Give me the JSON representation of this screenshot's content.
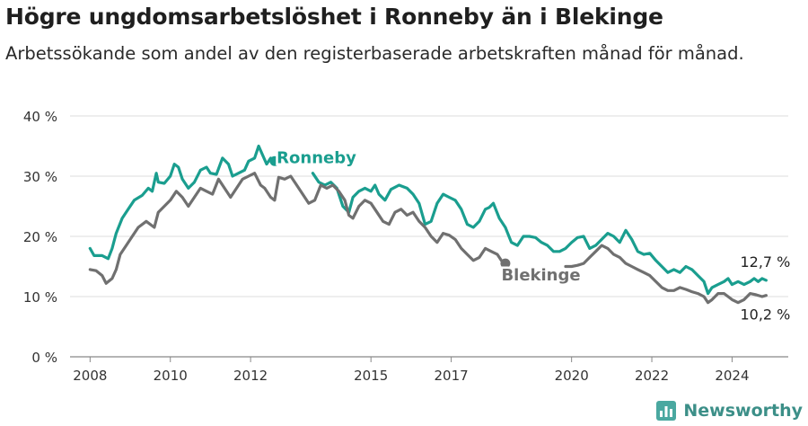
{
  "title": "Högre ungdomsarbetslöshet i Ronneby än i Blekinge",
  "subtitle": "Arbetssökande som andel av den registerbaserade arbetskraften månad för månad.",
  "brand": {
    "name": "Newsworthy",
    "icon": "newsworthy-logo-icon"
  },
  "chart_data": {
    "type": "line",
    "xlim": [
      2007.5,
      2025.4
    ],
    "ylim": [
      0,
      40
    ],
    "y_ticks": [
      0,
      10,
      20,
      30,
      40
    ],
    "y_tick_labels": [
      "0 %",
      "10 %",
      "20 %",
      "30 %",
      "40 %"
    ],
    "x_ticks": [
      2008,
      2010,
      2012,
      2015,
      2017,
      2020,
      2022,
      2024
    ],
    "x_tick_labels": [
      "2008",
      "2010",
      "2012",
      "2015",
      "2017",
      "2020",
      "2022",
      "2024"
    ],
    "grid": true,
    "series": [
      {
        "name": "Ronneby",
        "color": "#1a9e8f",
        "end_label": "12,7 %",
        "points": [
          [
            2008.0,
            18.0
          ],
          [
            2008.1,
            16.8
          ],
          [
            2008.3,
            16.8
          ],
          [
            2008.45,
            16.3
          ],
          [
            2008.55,
            18.0
          ],
          [
            2008.65,
            20.5
          ],
          [
            2008.8,
            23.0
          ],
          [
            2008.95,
            24.5
          ],
          [
            2009.1,
            26.0
          ],
          [
            2009.3,
            26.8
          ],
          [
            2009.45,
            28.0
          ],
          [
            2009.55,
            27.5
          ],
          [
            2009.65,
            30.5
          ],
          [
            2009.7,
            29.0
          ],
          [
            2009.85,
            28.8
          ],
          [
            2010.0,
            30.0
          ],
          [
            2010.1,
            32.0
          ],
          [
            2010.2,
            31.5
          ],
          [
            2010.3,
            29.5
          ],
          [
            2010.45,
            28.0
          ],
          [
            2010.6,
            29.0
          ],
          [
            2010.75,
            31.0
          ],
          [
            2010.9,
            31.5
          ],
          [
            2011.0,
            30.5
          ],
          [
            2011.15,
            30.3
          ],
          [
            2011.3,
            33.0
          ],
          [
            2011.45,
            32.0
          ],
          [
            2011.55,
            30.0
          ],
          [
            2011.7,
            30.5
          ],
          [
            2011.85,
            31.0
          ],
          [
            2011.95,
            32.5
          ],
          [
            2012.1,
            33.0
          ],
          [
            2012.2,
            35.0
          ],
          [
            2012.3,
            33.5
          ],
          [
            2012.4,
            32.0
          ],
          [
            2012.5,
            33.0
          ],
          [
            2012.6,
            32.5
          ]
        ]
      },
      {
        "name": "Ronneby",
        "color": "#1a9e8f",
        "points": [
          [
            2013.55,
            30.5
          ],
          [
            2013.7,
            29.0
          ],
          [
            2013.85,
            28.5
          ],
          [
            2014.0,
            29.0
          ],
          [
            2014.15,
            28.0
          ],
          [
            2014.3,
            25.0
          ],
          [
            2014.45,
            24.0
          ],
          [
            2014.55,
            26.5
          ],
          [
            2014.7,
            27.5
          ],
          [
            2014.85,
            28.0
          ],
          [
            2015.0,
            27.5
          ],
          [
            2015.1,
            28.5
          ],
          [
            2015.2,
            27.0
          ],
          [
            2015.35,
            26.0
          ],
          [
            2015.5,
            27.8
          ],
          [
            2015.7,
            28.5
          ],
          [
            2015.9,
            28.0
          ],
          [
            2016.05,
            27.0
          ],
          [
            2016.2,
            25.5
          ],
          [
            2016.35,
            22.0
          ],
          [
            2016.5,
            22.5
          ],
          [
            2016.65,
            25.5
          ],
          [
            2016.8,
            27.0
          ],
          [
            2016.95,
            26.5
          ],
          [
            2017.1,
            26.0
          ],
          [
            2017.25,
            24.5
          ],
          [
            2017.4,
            22.0
          ],
          [
            2017.55,
            21.5
          ],
          [
            2017.7,
            22.5
          ],
          [
            2017.85,
            24.5
          ],
          [
            2017.95,
            24.8
          ],
          [
            2018.05,
            25.5
          ],
          [
            2018.2,
            23.0
          ],
          [
            2018.35,
            21.5
          ],
          [
            2018.5,
            19.0
          ],
          [
            2018.65,
            18.5
          ],
          [
            2018.8,
            20.0
          ],
          [
            2018.95,
            20.0
          ],
          [
            2019.1,
            19.8
          ],
          [
            2019.25,
            19.0
          ],
          [
            2019.4,
            18.5
          ],
          [
            2019.55,
            17.5
          ],
          [
            2019.7,
            17.5
          ],
          [
            2019.85,
            18.0
          ],
          [
            2020.0,
            19.0
          ],
          [
            2020.15,
            19.8
          ],
          [
            2020.3,
            20.0
          ],
          [
            2020.45,
            18.0
          ],
          [
            2020.6,
            18.5
          ],
          [
            2020.75,
            19.5
          ],
          [
            2020.9,
            20.5
          ],
          [
            2021.05,
            20.0
          ],
          [
            2021.2,
            19.0
          ],
          [
            2021.35,
            21.0
          ],
          [
            2021.5,
            19.5
          ],
          [
            2021.65,
            17.5
          ],
          [
            2021.8,
            17.0
          ],
          [
            2021.95,
            17.2
          ],
          [
            2022.1,
            16.0
          ],
          [
            2022.25,
            15.0
          ],
          [
            2022.4,
            14.0
          ],
          [
            2022.55,
            14.5
          ],
          [
            2022.7,
            14.0
          ],
          [
            2022.85,
            15.0
          ],
          [
            2023.0,
            14.5
          ],
          [
            2023.15,
            13.5
          ],
          [
            2023.3,
            12.5
          ],
          [
            2023.4,
            10.5
          ],
          [
            2023.5,
            11.5
          ],
          [
            2023.65,
            12.0
          ],
          [
            2023.8,
            12.5
          ],
          [
            2023.9,
            13.0
          ],
          [
            2024.0,
            12.0
          ],
          [
            2024.15,
            12.5
          ],
          [
            2024.3,
            12.0
          ],
          [
            2024.45,
            12.5
          ],
          [
            2024.55,
            13.0
          ],
          [
            2024.65,
            12.5
          ],
          [
            2024.75,
            13.0
          ],
          [
            2024.85,
            12.7
          ]
        ]
      },
      {
        "name": "Blekinge",
        "color": "#707070",
        "end_label": "10,2 %",
        "points": [
          [
            2008.0,
            14.5
          ],
          [
            2008.15,
            14.3
          ],
          [
            2008.3,
            13.5
          ],
          [
            2008.4,
            12.2
          ],
          [
            2008.55,
            13.0
          ],
          [
            2008.65,
            14.5
          ],
          [
            2008.75,
            17.0
          ],
          [
            2008.9,
            18.5
          ],
          [
            2009.05,
            20.0
          ],
          [
            2009.2,
            21.5
          ],
          [
            2009.4,
            22.5
          ],
          [
            2009.6,
            21.5
          ],
          [
            2009.7,
            24.0
          ],
          [
            2009.85,
            25.0
          ],
          [
            2010.0,
            26.0
          ],
          [
            2010.15,
            27.5
          ],
          [
            2010.3,
            26.5
          ],
          [
            2010.45,
            25.0
          ],
          [
            2010.6,
            26.5
          ],
          [
            2010.75,
            28.0
          ],
          [
            2010.9,
            27.5
          ],
          [
            2011.05,
            27.0
          ],
          [
            2011.2,
            29.5
          ],
          [
            2011.35,
            28.0
          ],
          [
            2011.5,
            26.5
          ],
          [
            2011.65,
            28.0
          ],
          [
            2011.8,
            29.5
          ],
          [
            2011.95,
            30.0
          ],
          [
            2012.1,
            30.5
          ],
          [
            2012.25,
            28.5
          ],
          [
            2012.35,
            28.0
          ],
          [
            2012.5,
            26.5
          ],
          [
            2012.6,
            26.0
          ],
          [
            2012.7,
            29.8
          ],
          [
            2012.85,
            29.5
          ],
          [
            2013.0,
            30.0
          ],
          [
            2013.15,
            28.5
          ],
          [
            2013.3,
            27.0
          ],
          [
            2013.45,
            25.5
          ],
          [
            2013.6,
            26.0
          ],
          [
            2013.75,
            28.5
          ],
          [
            2013.9,
            28.0
          ],
          [
            2014.05,
            28.5
          ],
          [
            2014.2,
            27.5
          ],
          [
            2014.35,
            26.0
          ],
          [
            2014.45,
            23.5
          ],
          [
            2014.55,
            23.0
          ],
          [
            2014.7,
            25.0
          ],
          [
            2014.85,
            26.0
          ],
          [
            2015.0,
            25.5
          ],
          [
            2015.15,
            24.0
          ],
          [
            2015.3,
            22.5
          ],
          [
            2015.45,
            22.0
          ],
          [
            2015.6,
            24.0
          ],
          [
            2015.75,
            24.5
          ],
          [
            2015.9,
            23.5
          ],
          [
            2016.05,
            24.0
          ],
          [
            2016.2,
            22.5
          ],
          [
            2016.35,
            21.5
          ],
          [
            2016.5,
            20.0
          ],
          [
            2016.65,
            19.0
          ],
          [
            2016.8,
            20.5
          ],
          [
            2016.95,
            20.2
          ],
          [
            2017.1,
            19.5
          ],
          [
            2017.25,
            18.0
          ],
          [
            2017.4,
            17.0
          ],
          [
            2017.55,
            16.0
          ],
          [
            2017.7,
            16.5
          ],
          [
            2017.85,
            18.0
          ],
          [
            2018.0,
            17.5
          ],
          [
            2018.15,
            17.0
          ],
          [
            2018.25,
            16.0
          ],
          [
            2018.35,
            15.5
          ]
        ]
      },
      {
        "name": "Blekinge",
        "color": "#707070",
        "points": [
          [
            2019.85,
            15.0
          ],
          [
            2020.0,
            15.0
          ],
          [
            2020.15,
            15.2
          ],
          [
            2020.3,
            15.5
          ],
          [
            2020.45,
            16.5
          ],
          [
            2020.6,
            17.5
          ],
          [
            2020.75,
            18.5
          ],
          [
            2020.9,
            18.0
          ],
          [
            2021.05,
            17.0
          ],
          [
            2021.2,
            16.5
          ],
          [
            2021.35,
            15.5
          ],
          [
            2021.5,
            15.0
          ],
          [
            2021.65,
            14.5
          ],
          [
            2021.8,
            14.0
          ],
          [
            2021.95,
            13.5
          ],
          [
            2022.1,
            12.5
          ],
          [
            2022.25,
            11.5
          ],
          [
            2022.4,
            11.0
          ],
          [
            2022.55,
            11.0
          ],
          [
            2022.7,
            11.5
          ],
          [
            2022.85,
            11.2
          ],
          [
            2023.0,
            10.8
          ],
          [
            2023.15,
            10.5
          ],
          [
            2023.3,
            10.0
          ],
          [
            2023.4,
            9.0
          ],
          [
            2023.5,
            9.5
          ],
          [
            2023.65,
            10.5
          ],
          [
            2023.8,
            10.5
          ],
          [
            2023.9,
            10.0
          ],
          [
            2024.0,
            9.5
          ],
          [
            2024.15,
            9.0
          ],
          [
            2024.3,
            9.5
          ],
          [
            2024.45,
            10.5
          ],
          [
            2024.6,
            10.3
          ],
          [
            2024.75,
            10.0
          ],
          [
            2024.85,
            10.2
          ]
        ]
      }
    ],
    "annotations": [
      {
        "text": "Ronneby",
        "color": "#1a9e8f",
        "x": 2012.65,
        "y": 32.2
      },
      {
        "text": "Blekinge",
        "color": "#707070",
        "x": 2018.25,
        "y": 12.7
      }
    ],
    "end_labels": [
      {
        "text": "12,7 %",
        "x": 2024.85,
        "y": 12.7,
        "position": "above"
      },
      {
        "text": "10,2 %",
        "x": 2024.85,
        "y": 10.2,
        "position": "below"
      }
    ]
  }
}
